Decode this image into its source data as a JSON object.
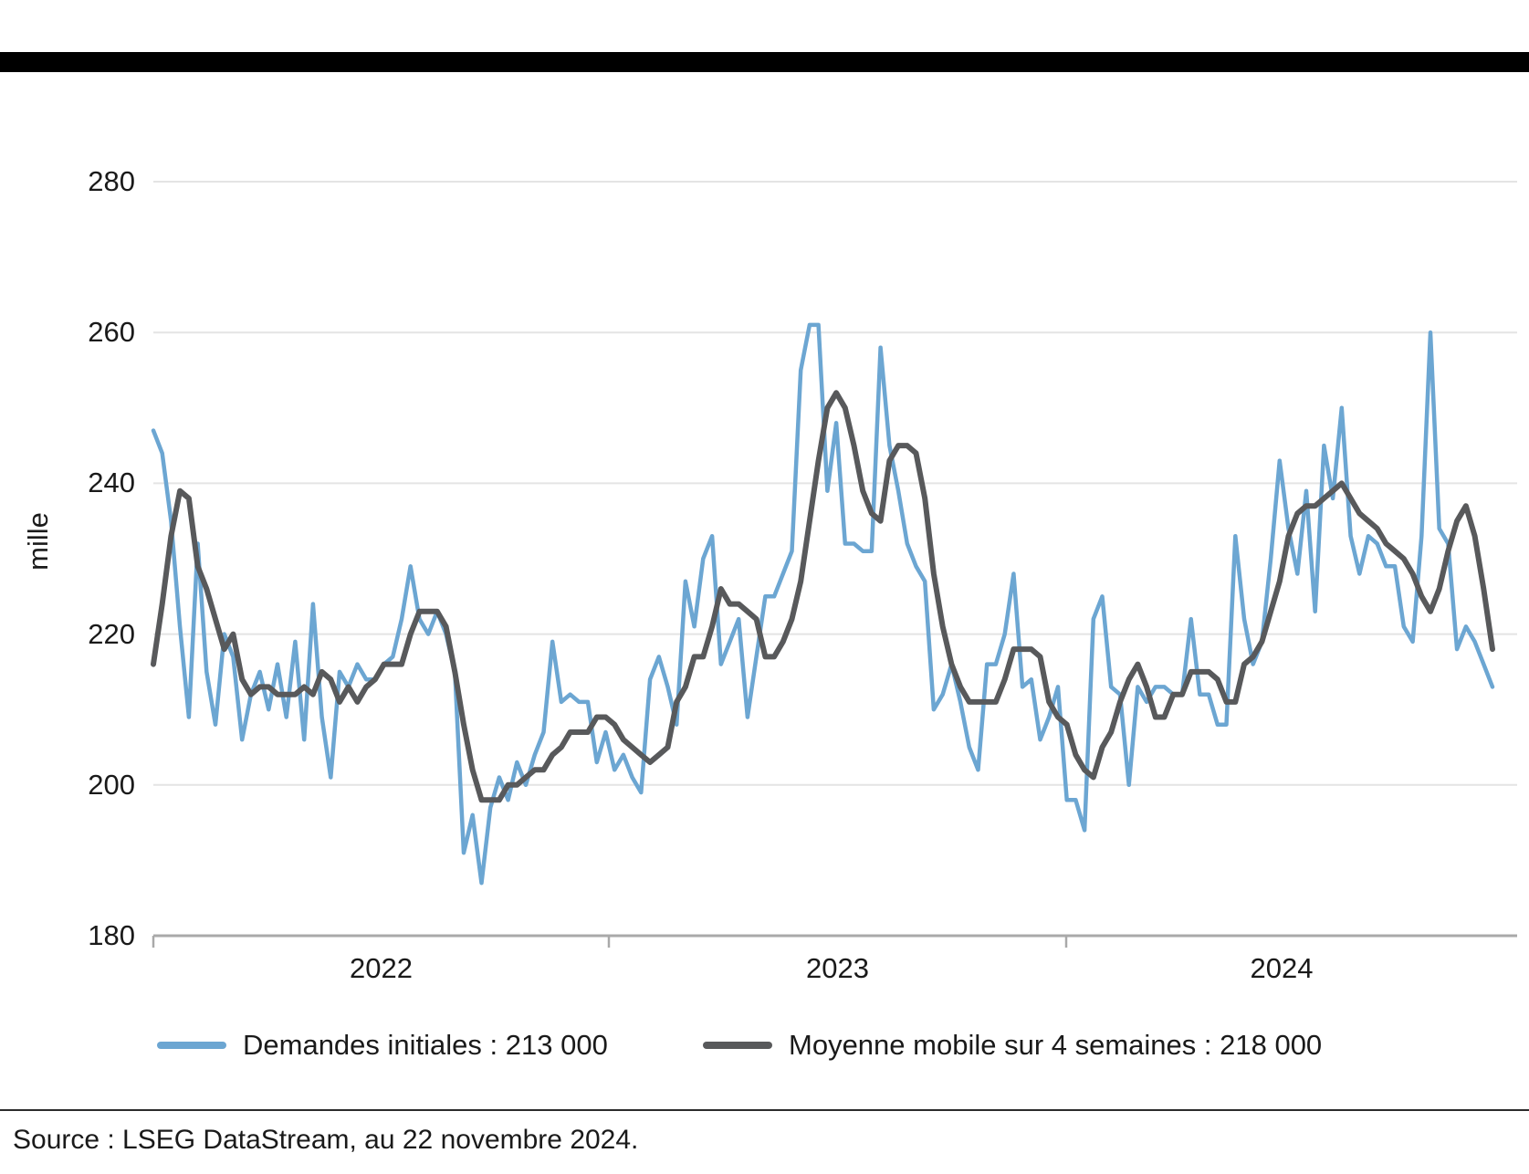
{
  "colors": {
    "initial_claims_line": "#6CA6D2",
    "moving_average_line": "#58595B",
    "gridline": "#E4E4E4",
    "axis": "#A9A9A9",
    "text": "#1A1A1A",
    "top_bar": "#000000",
    "divider": "#2B2B2B",
    "background": "#FFFFFF"
  },
  "legend": {
    "items": [
      {
        "label": "Demandes initiales : 213 000",
        "color": "#6CA6D2"
      },
      {
        "label": "Moyenne mobile sur 4 semaines : 218 000",
        "color": "#58595B"
      }
    ]
  },
  "footer": {
    "source": "Source : LSEG DataStream, au 22 novembre 2024."
  },
  "chart_data": {
    "type": "line",
    "title": "",
    "ylabel": "mille",
    "xlabel": "",
    "unit": "thousands",
    "ylim": [
      180,
      287
    ],
    "y_ticks": [
      180,
      200,
      220,
      240,
      260,
      280
    ],
    "grid": "horizontal-only",
    "legend_position": "bottom",
    "x_year_labels": [
      "2022",
      "2023",
      "2024"
    ],
    "x_range": "weekly, January 2022 - 22 November 2024",
    "series": [
      {
        "name": "Demandes initiales",
        "last_value_label": "213 000",
        "color": "#6CA6D2",
        "values": [
          247,
          244,
          235,
          221,
          209,
          232,
          215,
          208,
          220,
          217,
          206,
          212,
          215,
          210,
          216,
          209,
          219,
          206,
          224,
          209,
          201,
          215,
          213,
          216,
          214,
          214,
          216,
          217,
          222,
          229,
          222,
          220,
          223,
          220,
          215,
          191,
          196,
          187,
          197,
          201,
          198,
          203,
          200,
          204,
          207,
          219,
          211,
          212,
          211,
          211,
          203,
          207,
          202,
          204,
          201,
          199,
          214,
          217,
          213,
          208,
          227,
          221,
          230,
          233,
          216,
          219,
          222,
          209,
          217,
          225,
          225,
          228,
          231,
          255,
          261,
          261,
          239,
          248,
          232,
          232,
          231,
          231,
          258,
          245,
          239,
          232,
          229,
          227,
          210,
          212,
          216,
          211,
          205,
          202,
          216,
          216,
          220,
          228,
          213,
          214,
          206,
          209,
          213,
          198,
          198,
          194,
          222,
          225,
          213,
          212,
          200,
          213,
          211,
          213,
          213,
          212,
          212,
          222,
          212,
          212,
          208,
          208,
          233,
          222,
          216,
          219,
          230,
          243,
          234,
          228,
          239,
          223,
          245,
          238,
          250,
          233,
          228,
          233,
          232,
          229,
          229,
          221,
          219,
          233,
          260,
          234,
          232,
          218,
          221,
          219,
          216,
          213
        ]
      },
      {
        "name": "Moyenne mobile sur 4 semaines",
        "last_value_label": "218 000",
        "color": "#58595B",
        "values": [
          216,
          224,
          233,
          239,
          238,
          229,
          226,
          222,
          218,
          220,
          214,
          212,
          213,
          213,
          212,
          212,
          212,
          213,
          212,
          215,
          214,
          211,
          213,
          211,
          213,
          214,
          216,
          216,
          216,
          220,
          223,
          223,
          223,
          221,
          215,
          208,
          202,
          198,
          198,
          198,
          200,
          200,
          201,
          202,
          202,
          204,
          205,
          207,
          207,
          207,
          209,
          209,
          208,
          206,
          205,
          204,
          203,
          204,
          205,
          211,
          213,
          217,
          217,
          221,
          226,
          224,
          224,
          223,
          222,
          217,
          217,
          219,
          222,
          227,
          235,
          243,
          250,
          252,
          250,
          245,
          239,
          236,
          235,
          243,
          245,
          245,
          244,
          238,
          228,
          221,
          216,
          213,
          211,
          211,
          211,
          211,
          214,
          218,
          218,
          218,
          217,
          211,
          209,
          208,
          204,
          202,
          201,
          205,
          207,
          211,
          214,
          216,
          213,
          209,
          209,
          212,
          212,
          215,
          215,
          215,
          214,
          211,
          211,
          216,
          217,
          219,
          223,
          227,
          233,
          236,
          237,
          237,
          238,
          239,
          240,
          238,
          236,
          235,
          234,
          232,
          231,
          230,
          228,
          225,
          223,
          226,
          231,
          235,
          237,
          233,
          226,
          218
        ]
      }
    ]
  }
}
